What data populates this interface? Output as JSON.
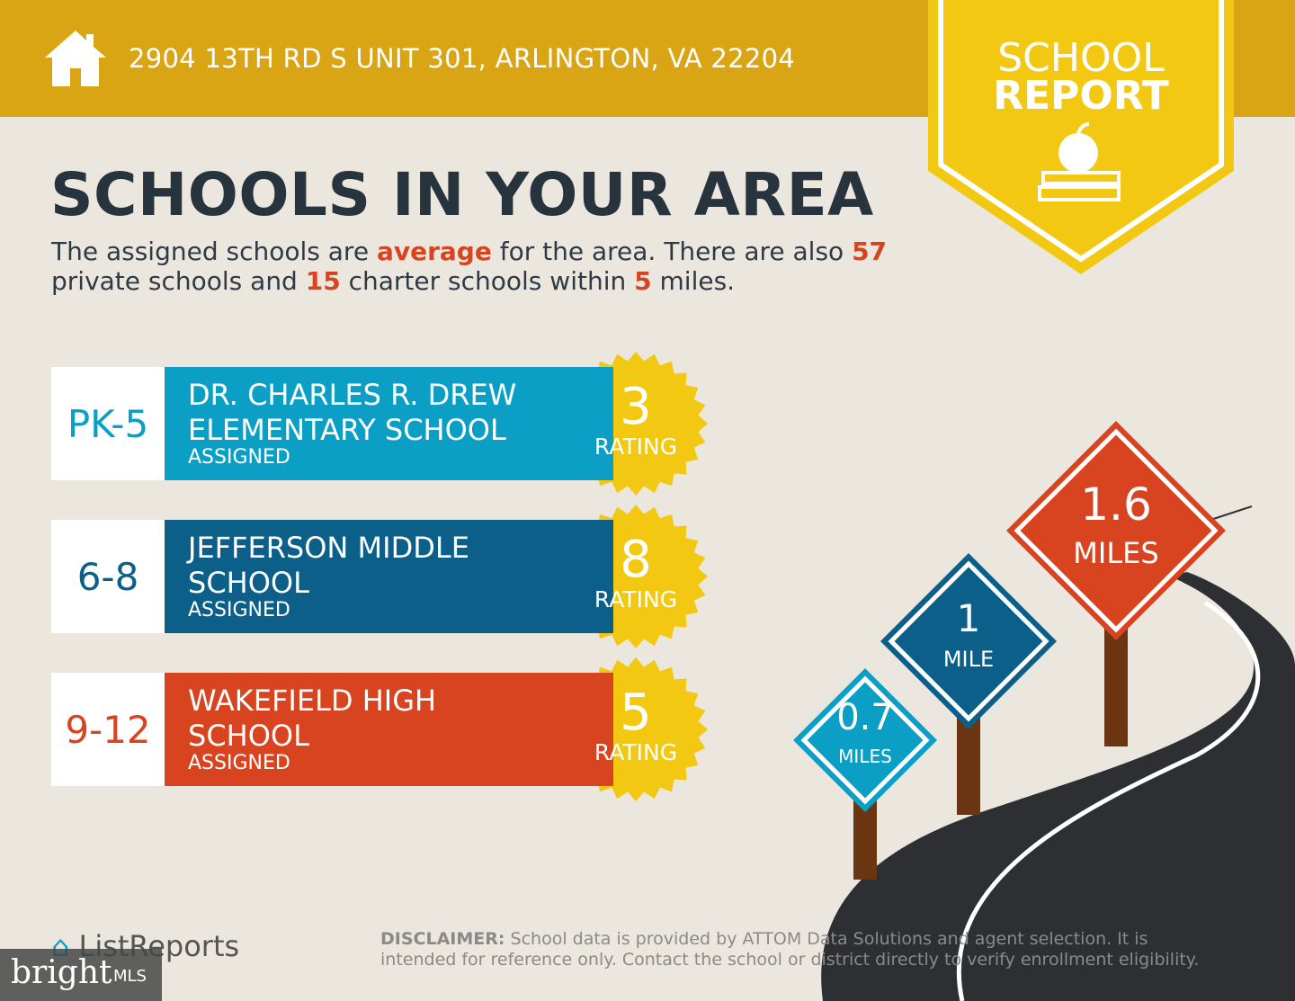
{
  "header": {
    "address": "2904 13TH RD S UNIT 301, ARLINGTON, VA 22204",
    "badge": [
      "SCHOOL",
      "REPORT"
    ]
  },
  "title": "SCHOOLS IN YOUR AREA",
  "summary": [
    {
      "text": "The assigned schools are ",
      "emphasis": false
    },
    {
      "text": "average",
      "emphasis": true
    },
    {
      "text": " for the area. There are also ",
      "emphasis": false
    },
    {
      "text": "57",
      "emphasis": true
    },
    {
      "text": " private schools and ",
      "emphasis": false
    },
    {
      "text": "15",
      "emphasis": true
    },
    {
      "text": " charter schools within ",
      "emphasis": false
    },
    {
      "text": "5",
      "emphasis": true
    },
    {
      "text": " miles.",
      "emphasis": false
    }
  ],
  "schools": [
    {
      "grades": "PK-5",
      "name": [
        "DR. CHARLES R. DREW",
        "ELEMENTARY SCHOOL"
      ],
      "status": "ASSIGNED",
      "rating": "3",
      "rating_label": "RATING",
      "color": "#0b9fc6"
    },
    {
      "grades": "6-8",
      "name": [
        "JEFFERSON MIDDLE",
        "SCHOOL"
      ],
      "status": "ASSIGNED",
      "rating": "8",
      "rating_label": "RATING",
      "color": "#0b5f89"
    },
    {
      "grades": "9-12",
      "name": [
        "WAKEFIELD HIGH",
        "SCHOOL"
      ],
      "status": "ASSIGNED",
      "rating": "5",
      "rating_label": "RATING",
      "color": "#d7441f"
    }
  ],
  "distances": [
    {
      "value": "0.7",
      "unit": "MILES",
      "color": "#0b9fc6"
    },
    {
      "value": "1",
      "unit": "MILE",
      "color": "#0b5f89"
    },
    {
      "value": "1.6",
      "unit": "MILES",
      "color": "#d7441f"
    }
  ],
  "footer": {
    "logo": "ListReports",
    "disclaimer_label": "DISCLAIMER:",
    "disclaimer": "School data is provided by ATTOM Data Solutions and agent selection. It is intended for reference only. Contact the school or district directly to verify enrollment eligibility.",
    "watermark": "bright",
    "watermark_suffix": "MLS"
  }
}
